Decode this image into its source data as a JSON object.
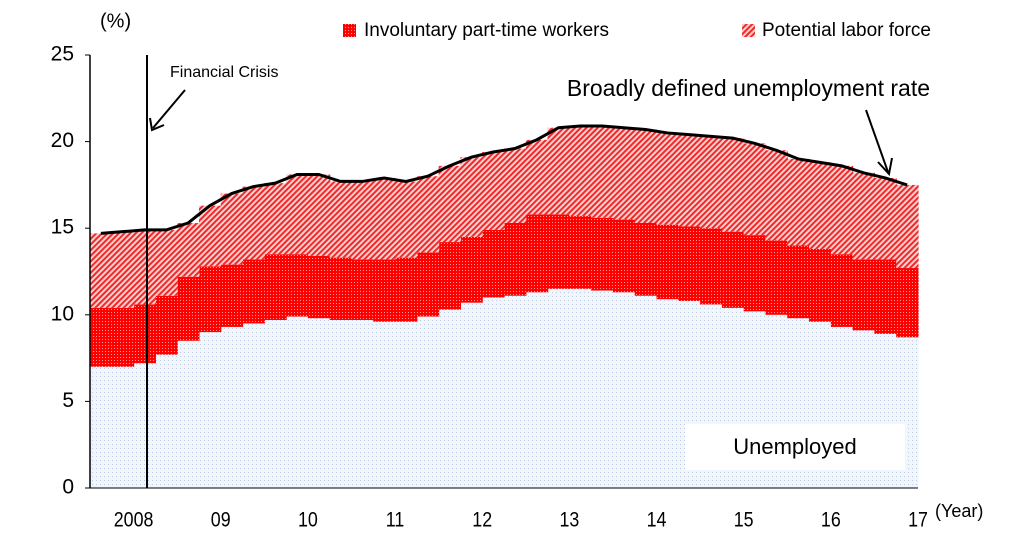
{
  "chart_data": {
    "type": "stacked_area",
    "y_label": "(%)",
    "x_label": "(Year)",
    "categories": [
      null,
      "2008",
      null,
      null,
      null,
      "09",
      null,
      null,
      null,
      "10",
      null,
      null,
      null,
      "11",
      null,
      null,
      null,
      "12",
      null,
      null,
      null,
      "13",
      null,
      null,
      null,
      "14",
      null,
      null,
      null,
      "15",
      null,
      null,
      null,
      "16",
      null,
      null,
      null,
      "17"
    ],
    "series": [
      {
        "name": "Unemployed",
        "color": "#e6eef8",
        "values": [
          7.0,
          7.0,
          7.2,
          7.7,
          8.5,
          9.0,
          9.3,
          9.5,
          9.7,
          9.9,
          9.8,
          9.7,
          9.7,
          9.6,
          9.6,
          9.9,
          10.3,
          10.7,
          11.0,
          11.1,
          11.3,
          11.5,
          11.5,
          11.4,
          11.3,
          11.1,
          10.9,
          10.8,
          10.6,
          10.4,
          10.2,
          10.0,
          9.8,
          9.6,
          9.3,
          9.1,
          8.9,
          8.7
        ]
      },
      {
        "name": "Involuntary part-time workers",
        "color": "#ff0000",
        "values": [
          3.4,
          3.4,
          3.4,
          3.4,
          3.7,
          3.8,
          3.6,
          3.7,
          3.8,
          3.6,
          3.6,
          3.6,
          3.5,
          3.6,
          3.7,
          3.7,
          3.9,
          3.8,
          3.9,
          4.2,
          4.5,
          4.3,
          4.2,
          4.2,
          4.2,
          4.2,
          4.3,
          4.3,
          4.4,
          4.4,
          4.4,
          4.3,
          4.2,
          4.2,
          4.2,
          4.1,
          4.3,
          4.0
        ]
      },
      {
        "name": "Potential labor force",
        "color": "#ff0000",
        "values": [
          4.3,
          4.4,
          4.3,
          3.8,
          3.1,
          3.5,
          4.1,
          4.2,
          4.1,
          4.6,
          4.7,
          4.4,
          4.5,
          4.7,
          4.4,
          4.4,
          4.4,
          4.6,
          4.5,
          4.3,
          4.3,
          5.0,
          5.2,
          5.3,
          5.3,
          5.4,
          5.3,
          5.3,
          5.3,
          5.4,
          5.3,
          5.2,
          5.0,
          5.0,
          5.1,
          5.0,
          4.7,
          4.8
        ]
      }
    ],
    "line": {
      "name": "Broadly defined unemployment rate",
      "color": "#000000",
      "values": [
        14.7,
        14.8,
        14.9,
        14.9,
        15.3,
        16.3,
        17.0,
        17.4,
        17.6,
        18.1,
        18.1,
        17.7,
        17.7,
        17.9,
        17.7,
        18.0,
        18.6,
        19.1,
        19.4,
        19.6,
        20.1,
        20.8,
        20.9,
        20.9,
        20.8,
        20.7,
        20.5,
        20.4,
        20.3,
        20.2,
        19.9,
        19.5,
        19.0,
        18.8,
        18.6,
        18.2,
        17.9,
        17.5
      ]
    },
    "annotations": [
      "Financial Crisis"
    ],
    "ylim": [
      0,
      25
    ],
    "yticks": [
      0,
      5,
      10,
      15,
      20,
      25
    ],
    "grid": false
  }
}
